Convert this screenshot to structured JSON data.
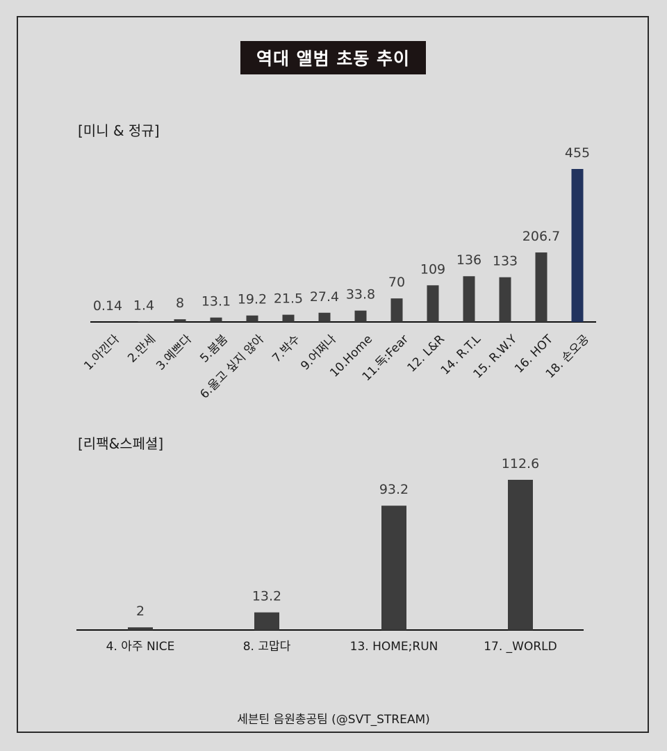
{
  "title": "역대 앨범 초동 추이",
  "footer": "세븐틴 음원총공팀 (@SVT_STREAM)",
  "colors": {
    "bar": "#3d3d3d",
    "highlight": "#22335e",
    "background": "#dcdcdc",
    "title_bg": "#1c1414"
  },
  "chart_data": [
    {
      "type": "bar",
      "title": "[미니 & 정규]",
      "categories": [
        "1.아낀다",
        "2.만세",
        "3.예쁘다",
        "5.붐붐",
        "6.울고 싶지 않아",
        "7.박수",
        "9.어쩌나",
        "10.Home",
        "11.독:Fear",
        "12. L&R",
        "14. R.T.L",
        "15. R.W.Y",
        "16. HOT",
        "18. 손오공"
      ],
      "values": [
        0.14,
        1.4,
        8,
        13.1,
        19.2,
        21.5,
        27.4,
        33.8,
        70,
        109,
        136,
        133,
        206.7,
        455
      ],
      "value_labels": [
        "0.14",
        "1.4",
        "8",
        "13.1",
        "19.2",
        "21.5",
        "27.4",
        "33.8",
        "70",
        "109",
        "136",
        "133",
        "206.7",
        "455"
      ],
      "highlight_index": 13,
      "ylim": [
        0,
        455
      ],
      "grid": false,
      "xlabel": "",
      "ylabel": ""
    },
    {
      "type": "bar",
      "title": "[리팩&스페셜]",
      "categories": [
        "4. 아주 NICE",
        "8. 고맙다",
        "13. HOME;RUN",
        "17. _WORLD"
      ],
      "values": [
        2,
        13.2,
        93.2,
        112.6
      ],
      "value_labels": [
        "2",
        "13.2",
        "93.2",
        "112.6"
      ],
      "ylim": [
        0,
        112.6
      ],
      "grid": false,
      "xlabel": "",
      "ylabel": ""
    }
  ]
}
